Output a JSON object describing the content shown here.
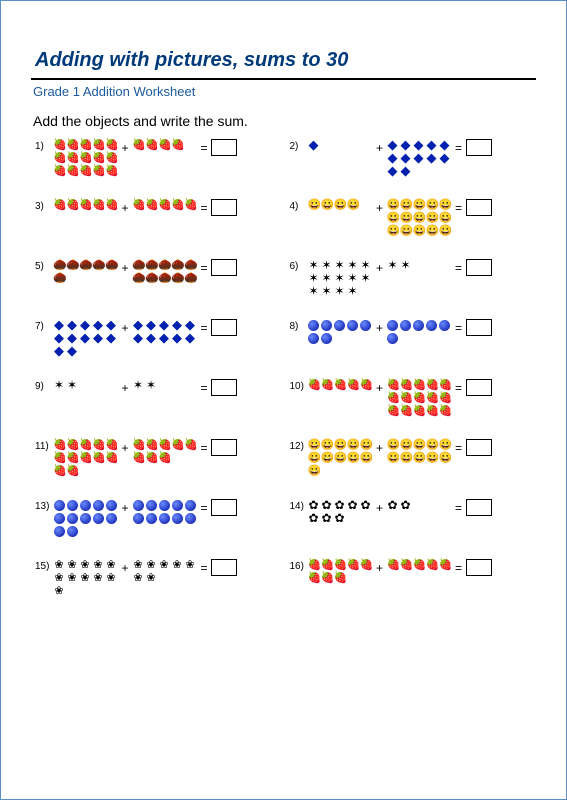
{
  "page": {
    "title": "Adding with pictures, sums to 30",
    "subtitle": "Grade 1 Addition Worksheet",
    "instruction": "Add the objects and write the sum.",
    "border_color": "#5a8ec7",
    "title_color": "#003a7a",
    "subtitle_color": "#1a5a9e"
  },
  "icons": {
    "strawberry": {
      "glyph": "🍓",
      "color": "#c00020"
    },
    "bluegem": {
      "glyph": "◆",
      "color": "#0020b0"
    },
    "emoji": {
      "glyph": "😀",
      "color": "#e0b000"
    },
    "nut": {
      "glyph": "🌰",
      "color": "#6b3a10"
    },
    "star-o": {
      "glyph": "✶",
      "color": "#000000"
    },
    "bluedot": {
      "glyph": "●",
      "color": "#0010a0"
    },
    "flower": {
      "glyph": "✿",
      "color": "#000000"
    },
    "flower-o": {
      "glyph": "❀",
      "color": "#000000"
    }
  },
  "problems": [
    {
      "n": "1)",
      "icon": "strawberry",
      "a": 15,
      "b": 4,
      "row_a": 5,
      "row_b": 5
    },
    {
      "n": "2)",
      "icon": "bluegem",
      "a": 1,
      "b": 12,
      "row_a": 5,
      "row_b": 5
    },
    {
      "n": "3)",
      "icon": "strawberry",
      "a": 5,
      "b": 5,
      "row_a": 5,
      "row_b": 5
    },
    {
      "n": "4)",
      "icon": "emoji",
      "a": 4,
      "b": 15,
      "row_a": 5,
      "row_b": 5
    },
    {
      "n": "5)",
      "icon": "nut",
      "a": 6,
      "b": 10,
      "row_a": 5,
      "row_b": 5
    },
    {
      "n": "6)",
      "icon": "star-o",
      "a": 14,
      "b": 2,
      "row_a": 5,
      "row_b": 5
    },
    {
      "n": "7)",
      "icon": "bluegem",
      "a": 12,
      "b": 10,
      "row_a": 5,
      "row_b": 5
    },
    {
      "n": "8)",
      "icon": "bluedot",
      "a": 7,
      "b": 6,
      "row_a": 5,
      "row_b": 5
    },
    {
      "n": "9)",
      "icon": "star-o",
      "a": 2,
      "b": 2,
      "row_a": 5,
      "row_b": 5
    },
    {
      "n": "10)",
      "icon": "strawberry",
      "a": 5,
      "b": 15,
      "row_a": 5,
      "row_b": 5
    },
    {
      "n": "11)",
      "icon": "strawberry",
      "a": 12,
      "b": 8,
      "row_a": 5,
      "row_b": 5
    },
    {
      "n": "12)",
      "icon": "emoji",
      "a": 11,
      "b": 10,
      "row_a": 5,
      "row_b": 5
    },
    {
      "n": "13)",
      "icon": "bluedot",
      "a": 12,
      "b": 10,
      "row_a": 5,
      "row_b": 5
    },
    {
      "n": "14)",
      "icon": "flower",
      "a": 8,
      "b": 2,
      "row_a": 5,
      "row_b": 5
    },
    {
      "n": "15)",
      "icon": "flower-o",
      "a": 11,
      "b": 7,
      "row_a": 5,
      "row_b": 5
    },
    {
      "n": "16)",
      "icon": "strawberry",
      "a": 8,
      "b": 5,
      "row_a": 5,
      "row_b": 5
    }
  ]
}
